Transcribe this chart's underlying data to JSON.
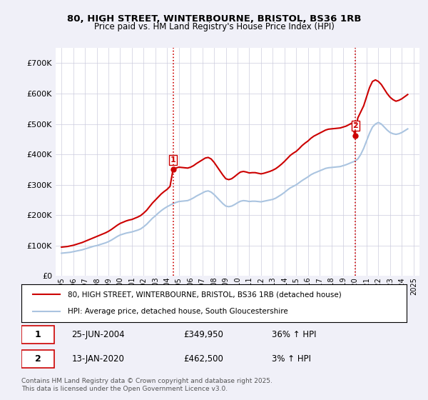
{
  "title1": "80, HIGH STREET, WINTERBOURNE, BRISTOL, BS36 1RB",
  "title2": "Price paid vs. HM Land Registry's House Price Index (HPI)",
  "bg_color": "#f0f0f8",
  "plot_bg": "#ffffff",
  "legend1": "80, HIGH STREET, WINTERBOURNE, BRISTOL, BS36 1RB (detached house)",
  "legend2": "HPI: Average price, detached house, South Gloucestershire",
  "sale1_date": "25-JUN-2004",
  "sale1_price": 349950,
  "sale1_hpi": "36% ↑ HPI",
  "sale2_date": "13-JAN-2020",
  "sale2_price": 462500,
  "sale2_hpi": "3% ↑ HPI",
  "footer": "Contains HM Land Registry data © Crown copyright and database right 2025.\nThis data is licensed under the Open Government Licence v3.0.",
  "hpi_color": "#aac4e0",
  "price_color": "#cc0000",
  "vline_color": "#cc0000",
  "ylim_max": 750000,
  "ylim_min": 0,
  "sale1_x": 2004.5,
  "sale2_x": 2020.04,
  "hpi_data": {
    "x": [
      1995.0,
      1995.25,
      1995.5,
      1995.75,
      1996.0,
      1996.25,
      1996.5,
      1996.75,
      1997.0,
      1997.25,
      1997.5,
      1997.75,
      1998.0,
      1998.25,
      1998.5,
      1998.75,
      1999.0,
      1999.25,
      1999.5,
      1999.75,
      2000.0,
      2000.25,
      2000.5,
      2000.75,
      2001.0,
      2001.25,
      2001.5,
      2001.75,
      2002.0,
      2002.25,
      2002.5,
      2002.75,
      2003.0,
      2003.25,
      2003.5,
      2003.75,
      2004.0,
      2004.25,
      2004.5,
      2004.75,
      2005.0,
      2005.25,
      2005.5,
      2005.75,
      2006.0,
      2006.25,
      2006.5,
      2006.75,
      2007.0,
      2007.25,
      2007.5,
      2007.75,
      2008.0,
      2008.25,
      2008.5,
      2008.75,
      2009.0,
      2009.25,
      2009.5,
      2009.75,
      2010.0,
      2010.25,
      2010.5,
      2010.75,
      2011.0,
      2011.25,
      2011.5,
      2011.75,
      2012.0,
      2012.25,
      2012.5,
      2012.75,
      2013.0,
      2013.25,
      2013.5,
      2013.75,
      2014.0,
      2014.25,
      2014.5,
      2014.75,
      2015.0,
      2015.25,
      2015.5,
      2015.75,
      2016.0,
      2016.25,
      2016.5,
      2016.75,
      2017.0,
      2017.25,
      2017.5,
      2017.75,
      2018.0,
      2018.25,
      2018.5,
      2018.75,
      2019.0,
      2019.25,
      2019.5,
      2019.75,
      2020.0,
      2020.25,
      2020.5,
      2020.75,
      2021.0,
      2021.25,
      2021.5,
      2021.75,
      2022.0,
      2022.25,
      2022.5,
      2022.75,
      2023.0,
      2023.25,
      2023.5,
      2023.75,
      2024.0,
      2024.25,
      2024.5
    ],
    "y": [
      75000,
      76000,
      77000,
      78000,
      80000,
      82000,
      84000,
      86000,
      89000,
      92000,
      95000,
      98000,
      100000,
      103000,
      106000,
      109000,
      113000,
      118000,
      124000,
      130000,
      135000,
      138000,
      141000,
      143000,
      145000,
      148000,
      151000,
      155000,
      162000,
      170000,
      180000,
      190000,
      198000,
      207000,
      215000,
      222000,
      228000,
      233000,
      238000,
      242000,
      245000,
      246000,
      247000,
      248000,
      252000,
      257000,
      263000,
      268000,
      273000,
      278000,
      280000,
      276000,
      268000,
      258000,
      248000,
      238000,
      230000,
      228000,
      230000,
      235000,
      241000,
      246000,
      248000,
      247000,
      245000,
      246000,
      246000,
      245000,
      244000,
      246000,
      248000,
      250000,
      252000,
      256000,
      262000,
      268000,
      275000,
      283000,
      290000,
      295000,
      300000,
      307000,
      314000,
      320000,
      326000,
      333000,
      338000,
      342000,
      346000,
      350000,
      354000,
      356000,
      357000,
      358000,
      359000,
      360000,
      363000,
      366000,
      370000,
      374000,
      378000,
      385000,
      400000,
      420000,
      445000,
      470000,
      490000,
      500000,
      505000,
      500000,
      490000,
      480000,
      472000,
      468000,
      466000,
      468000,
      472000,
      478000,
      484000
    ]
  },
  "price_data": {
    "x": [
      1995.0,
      1995.25,
      1995.5,
      1995.75,
      1996.0,
      1996.25,
      1996.5,
      1996.75,
      1997.0,
      1997.25,
      1997.5,
      1997.75,
      1998.0,
      1998.25,
      1998.5,
      1998.75,
      1999.0,
      1999.25,
      1999.5,
      1999.75,
      2000.0,
      2000.25,
      2000.5,
      2000.75,
      2001.0,
      2001.25,
      2001.5,
      2001.75,
      2002.0,
      2002.25,
      2002.5,
      2002.75,
      2003.0,
      2003.25,
      2003.5,
      2003.75,
      2004.0,
      2004.25,
      2004.5,
      2004.75,
      2005.0,
      2005.25,
      2005.5,
      2005.75,
      2006.0,
      2006.25,
      2006.5,
      2006.75,
      2007.0,
      2007.25,
      2007.5,
      2007.75,
      2008.0,
      2008.25,
      2008.5,
      2008.75,
      2009.0,
      2009.25,
      2009.5,
      2009.75,
      2010.0,
      2010.25,
      2010.5,
      2010.75,
      2011.0,
      2011.25,
      2011.5,
      2011.75,
      2012.0,
      2012.25,
      2012.5,
      2012.75,
      2013.0,
      2013.25,
      2013.5,
      2013.75,
      2014.0,
      2014.25,
      2014.5,
      2014.75,
      2015.0,
      2015.25,
      2015.5,
      2015.75,
      2016.0,
      2016.25,
      2016.5,
      2016.75,
      2017.0,
      2017.25,
      2017.5,
      2017.75,
      2018.0,
      2018.25,
      2018.5,
      2018.75,
      2019.0,
      2019.25,
      2019.5,
      2019.75,
      2020.0,
      2020.25,
      2020.5,
      2020.75,
      2021.0,
      2021.25,
      2021.5,
      2021.75,
      2022.0,
      2022.25,
      2022.5,
      2022.75,
      2023.0,
      2023.25,
      2023.5,
      2023.75,
      2024.0,
      2024.25,
      2024.5
    ],
    "y": [
      95000,
      96000,
      97000,
      99000,
      101000,
      104000,
      107000,
      110000,
      114000,
      118000,
      122000,
      126000,
      130000,
      134000,
      138000,
      142000,
      147000,
      153000,
      160000,
      167000,
      173000,
      177000,
      181000,
      184000,
      186000,
      190000,
      194000,
      199000,
      207000,
      216000,
      228000,
      240000,
      250000,
      260000,
      270000,
      278000,
      285000,
      295000,
      349950,
      355000,
      358000,
      357000,
      356000,
      355000,
      358000,
      363000,
      370000,
      376000,
      382000,
      388000,
      390000,
      385000,
      374000,
      360000,
      346000,
      332000,
      320000,
      317000,
      320000,
      327000,
      335000,
      342000,
      344000,
      342000,
      339000,
      340000,
      340000,
      338000,
      336000,
      338000,
      341000,
      344000,
      348000,
      353000,
      360000,
      368000,
      377000,
      387000,
      397000,
      404000,
      410000,
      419000,
      429000,
      437000,
      444000,
      453000,
      460000,
      465000,
      470000,
      475000,
      480000,
      483000,
      484000,
      485000,
      486000,
      487000,
      490000,
      493000,
      498000,
      503000,
      462500,
      520000,
      540000,
      560000,
      590000,
      620000,
      640000,
      645000,
      640000,
      630000,
      615000,
      600000,
      588000,
      580000,
      575000,
      578000,
      583000,
      590000,
      597000
    ]
  }
}
